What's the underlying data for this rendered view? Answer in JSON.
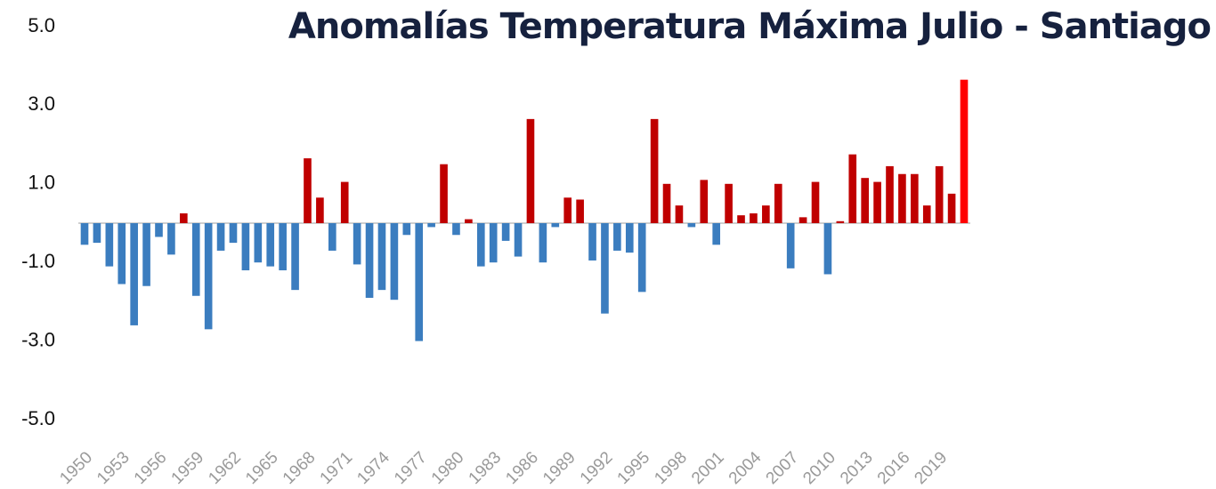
{
  "chart_data": {
    "type": "bar",
    "title": "Anomalías Temperatura Máxima  Julio - Santiago",
    "categories": [
      "1950",
      null,
      null,
      "1953",
      null,
      null,
      "1956",
      null,
      null,
      "1959",
      null,
      null,
      "1962",
      null,
      null,
      "1965",
      null,
      null,
      "1968",
      null,
      null,
      "1971",
      null,
      null,
      "1974",
      null,
      null,
      "1977",
      null,
      null,
      "1980",
      null,
      null,
      "1983",
      null,
      null,
      "1986",
      null,
      null,
      "1989",
      null,
      null,
      "1992",
      null,
      null,
      "1995",
      null,
      null,
      "1998",
      null,
      null,
      "2001",
      null,
      null,
      "2004",
      null,
      null,
      "2007",
      null,
      null,
      "2010",
      null,
      null,
      "2013",
      null,
      null,
      "2016",
      null,
      null,
      "2019",
      null,
      null
    ],
    "values": [
      -0.55,
      -0.5,
      -1.1,
      -1.55,
      -2.6,
      -1.6,
      -0.35,
      -0.8,
      0.25,
      -1.85,
      -2.7,
      -0.7,
      -0.5,
      -1.2,
      -1.0,
      -1.1,
      -1.2,
      -1.7,
      1.65,
      0.65,
      -0.7,
      1.05,
      -1.05,
      -1.9,
      -1.7,
      -1.95,
      -0.3,
      -3.0,
      -0.1,
      1.5,
      -0.3,
      0.1,
      -1.1,
      -1.0,
      -0.45,
      -0.85,
      2.65,
      -1.0,
      -0.1,
      0.65,
      0.6,
      -0.95,
      -2.3,
      -0.7,
      -0.75,
      -1.75,
      2.65,
      1.0,
      0.45,
      -0.1,
      1.1,
      -0.55,
      1.0,
      0.2,
      0.25,
      0.45,
      1.0,
      -1.15,
      0.15,
      1.05,
      -1.3,
      0.05,
      1.75,
      1.15,
      1.05,
      1.45,
      1.25,
      1.25,
      0.45,
      1.45,
      0.75,
      3.65
    ],
    "colors": [
      "#3b7dbf",
      "#3b7dbf",
      "#3b7dbf",
      "#3b7dbf",
      "#3b7dbf",
      "#3b7dbf",
      "#3b7dbf",
      "#3b7dbf",
      "#c00000",
      "#3b7dbf",
      "#3b7dbf",
      "#3b7dbf",
      "#3b7dbf",
      "#3b7dbf",
      "#3b7dbf",
      "#3b7dbf",
      "#3b7dbf",
      "#3b7dbf",
      "#c00000",
      "#c00000",
      "#3b7dbf",
      "#c00000",
      "#3b7dbf",
      "#3b7dbf",
      "#3b7dbf",
      "#3b7dbf",
      "#3b7dbf",
      "#3b7dbf",
      "#3b7dbf",
      "#c00000",
      "#3b7dbf",
      "#c00000",
      "#3b7dbf",
      "#3b7dbf",
      "#3b7dbf",
      "#3b7dbf",
      "#c00000",
      "#3b7dbf",
      "#3b7dbf",
      "#c00000",
      "#c00000",
      "#3b7dbf",
      "#3b7dbf",
      "#3b7dbf",
      "#3b7dbf",
      "#3b7dbf",
      "#c00000",
      "#c00000",
      "#c00000",
      "#3b7dbf",
      "#c00000",
      "#3b7dbf",
      "#c00000",
      "#c00000",
      "#c00000",
      "#c00000",
      "#c00000",
      "#3b7dbf",
      "#c00000",
      "#c00000",
      "#3b7dbf",
      "#c00000",
      "#c00000",
      "#c00000",
      "#c00000",
      "#c00000",
      "#c00000",
      "#c00000",
      "#c00000",
      "#c00000",
      "#c00000",
      "#ff0000"
    ],
    "ylim": [
      -5,
      5
    ],
    "yticks": [
      {
        "value": 5,
        "label": "5.0"
      },
      {
        "value": 3,
        "label": "3.0"
      },
      {
        "value": 1,
        "label": "1.0"
      },
      {
        "value": -1,
        "label": "-1.0"
      },
      {
        "value": -3,
        "label": "-3.0"
      },
      {
        "value": -5,
        "label": "-5.0"
      }
    ],
    "grid": false
  }
}
